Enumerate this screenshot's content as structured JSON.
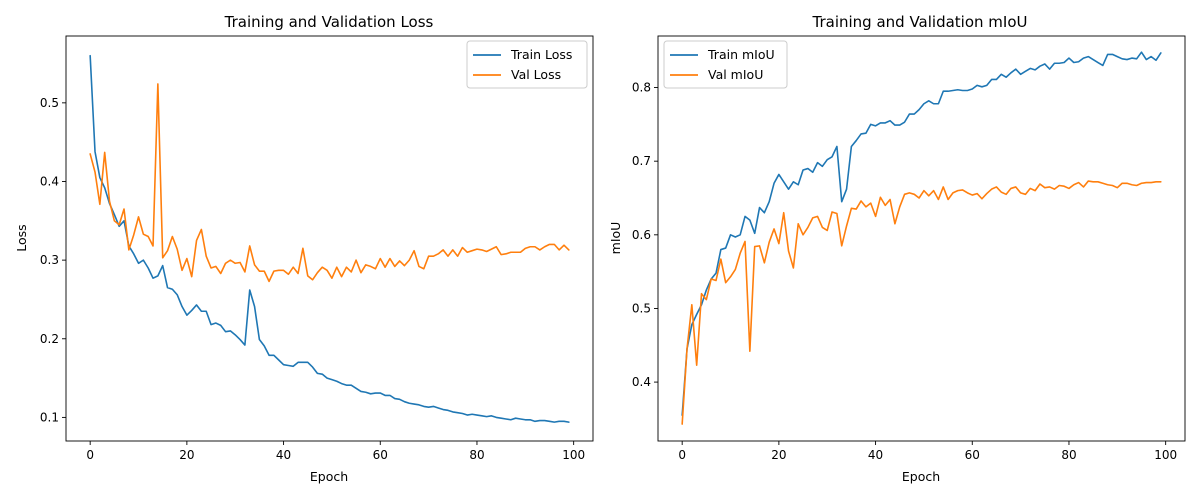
{
  "colors": {
    "series_1": "#1f77b4",
    "series_2": "#ff7f0e"
  },
  "chart_data": [
    {
      "type": "line",
      "title": "Training and Validation Loss",
      "xlabel": "Epoch",
      "ylabel": "Loss",
      "xlim": [
        -5,
        104
      ],
      "ylim": [
        0.07,
        0.585
      ],
      "xticks": [
        0,
        20,
        40,
        60,
        80,
        100
      ],
      "yticks": [
        0.1,
        0.2,
        0.3,
        0.4,
        0.5
      ],
      "grid": false,
      "legend_position": "upper right",
      "series": [
        {
          "name": "Train Loss",
          "color": "#1f77b4",
          "x_start": 0,
          "values": [
            0.56,
            0.438,
            0.405,
            0.392,
            0.372,
            0.358,
            0.343,
            0.35,
            0.318,
            0.308,
            0.296,
            0.3,
            0.29,
            0.277,
            0.28,
            0.293,
            0.265,
            0.263,
            0.256,
            0.241,
            0.23,
            0.236,
            0.243,
            0.235,
            0.235,
            0.218,
            0.22,
            0.217,
            0.209,
            0.21,
            0.205,
            0.199,
            0.192,
            0.262,
            0.241,
            0.199,
            0.191,
            0.179,
            0.179,
            0.173,
            0.167,
            0.166,
            0.165,
            0.17,
            0.17,
            0.17,
            0.164,
            0.156,
            0.155,
            0.15,
            0.148,
            0.146,
            0.143,
            0.141,
            0.141,
            0.137,
            0.133,
            0.132,
            0.13,
            0.131,
            0.131,
            0.128,
            0.128,
            0.124,
            0.123,
            0.12,
            0.118,
            0.117,
            0.116,
            0.114,
            0.113,
            0.114,
            0.112,
            0.11,
            0.109,
            0.107,
            0.106,
            0.105,
            0.103,
            0.104,
            0.103,
            0.102,
            0.101,
            0.102,
            0.1,
            0.099,
            0.098,
            0.097,
            0.099,
            0.098,
            0.097,
            0.097,
            0.095,
            0.096,
            0.096,
            0.095,
            0.094,
            0.095,
            0.095,
            0.094
          ]
        },
        {
          "name": "Val Loss",
          "color": "#ff7f0e",
          "x_start": 0,
          "values": [
            0.435,
            0.412,
            0.371,
            0.437,
            0.375,
            0.35,
            0.345,
            0.365,
            0.313,
            0.332,
            0.355,
            0.333,
            0.33,
            0.318,
            0.524,
            0.303,
            0.312,
            0.33,
            0.314,
            0.287,
            0.302,
            0.279,
            0.325,
            0.339,
            0.305,
            0.29,
            0.292,
            0.283,
            0.296,
            0.3,
            0.296,
            0.297,
            0.285,
            0.318,
            0.294,
            0.286,
            0.286,
            0.273,
            0.286,
            0.287,
            0.287,
            0.282,
            0.291,
            0.283,
            0.315,
            0.28,
            0.275,
            0.284,
            0.291,
            0.287,
            0.277,
            0.291,
            0.279,
            0.291,
            0.285,
            0.3,
            0.284,
            0.294,
            0.292,
            0.289,
            0.302,
            0.291,
            0.302,
            0.292,
            0.299,
            0.293,
            0.3,
            0.312,
            0.292,
            0.289,
            0.305,
            0.305,
            0.308,
            0.313,
            0.305,
            0.313,
            0.305,
            0.316,
            0.31,
            0.312,
            0.314,
            0.313,
            0.311,
            0.314,
            0.317,
            0.307,
            0.308,
            0.31,
            0.31,
            0.31,
            0.315,
            0.317,
            0.317,
            0.313,
            0.317,
            0.32,
            0.32,
            0.313,
            0.319,
            0.313
          ]
        }
      ]
    },
    {
      "type": "line",
      "title": "Training and Validation mIoU",
      "xlabel": "Epoch",
      "ylabel": "mIoU",
      "xlim": [
        -5,
        104
      ],
      "ylim": [
        0.32,
        0.87
      ],
      "xticks": [
        0,
        20,
        40,
        60,
        80,
        100
      ],
      "yticks": [
        0.4,
        0.5,
        0.6,
        0.7,
        0.8
      ],
      "grid": false,
      "legend_position": "upper left",
      "series": [
        {
          "name": "Train mIoU",
          "color": "#1f77b4",
          "x_start": 0,
          "values": [
            0.355,
            0.445,
            0.478,
            0.492,
            0.505,
            0.525,
            0.54,
            0.548,
            0.58,
            0.582,
            0.6,
            0.597,
            0.6,
            0.625,
            0.62,
            0.602,
            0.637,
            0.63,
            0.645,
            0.67,
            0.682,
            0.672,
            0.662,
            0.672,
            0.668,
            0.688,
            0.69,
            0.685,
            0.698,
            0.693,
            0.702,
            0.706,
            0.72,
            0.645,
            0.662,
            0.72,
            0.728,
            0.737,
            0.738,
            0.75,
            0.748,
            0.752,
            0.752,
            0.755,
            0.749,
            0.749,
            0.753,
            0.764,
            0.764,
            0.77,
            0.778,
            0.782,
            0.778,
            0.778,
            0.795,
            0.795,
            0.796,
            0.797,
            0.796,
            0.796,
            0.798,
            0.803,
            0.801,
            0.803,
            0.811,
            0.811,
            0.818,
            0.814,
            0.82,
            0.825,
            0.818,
            0.822,
            0.826,
            0.824,
            0.829,
            0.832,
            0.825,
            0.833,
            0.833,
            0.834,
            0.84,
            0.834,
            0.835,
            0.84,
            0.842,
            0.838,
            0.834,
            0.83,
            0.845,
            0.845,
            0.842,
            0.839,
            0.838,
            0.84,
            0.839,
            0.848,
            0.838,
            0.842,
            0.837,
            0.847
          ]
        },
        {
          "name": "Val mIoU",
          "color": "#ff7f0e",
          "x_start": 0,
          "values": [
            0.343,
            0.445,
            0.505,
            0.423,
            0.52,
            0.512,
            0.54,
            0.538,
            0.567,
            0.535,
            0.543,
            0.553,
            0.575,
            0.591,
            0.442,
            0.584,
            0.585,
            0.562,
            0.59,
            0.608,
            0.588,
            0.63,
            0.578,
            0.555,
            0.615,
            0.6,
            0.61,
            0.623,
            0.625,
            0.61,
            0.606,
            0.631,
            0.629,
            0.585,
            0.612,
            0.636,
            0.635,
            0.646,
            0.638,
            0.643,
            0.625,
            0.651,
            0.64,
            0.648,
            0.615,
            0.638,
            0.655,
            0.657,
            0.655,
            0.65,
            0.66,
            0.653,
            0.66,
            0.648,
            0.665,
            0.648,
            0.657,
            0.66,
            0.661,
            0.657,
            0.654,
            0.656,
            0.649,
            0.656,
            0.662,
            0.665,
            0.658,
            0.655,
            0.663,
            0.665,
            0.657,
            0.655,
            0.663,
            0.66,
            0.669,
            0.664,
            0.665,
            0.662,
            0.667,
            0.666,
            0.663,
            0.668,
            0.671,
            0.665,
            0.673,
            0.672,
            0.672,
            0.67,
            0.668,
            0.667,
            0.664,
            0.67,
            0.67,
            0.668,
            0.667,
            0.67,
            0.671,
            0.671,
            0.672,
            0.672
          ]
        }
      ]
    }
  ]
}
